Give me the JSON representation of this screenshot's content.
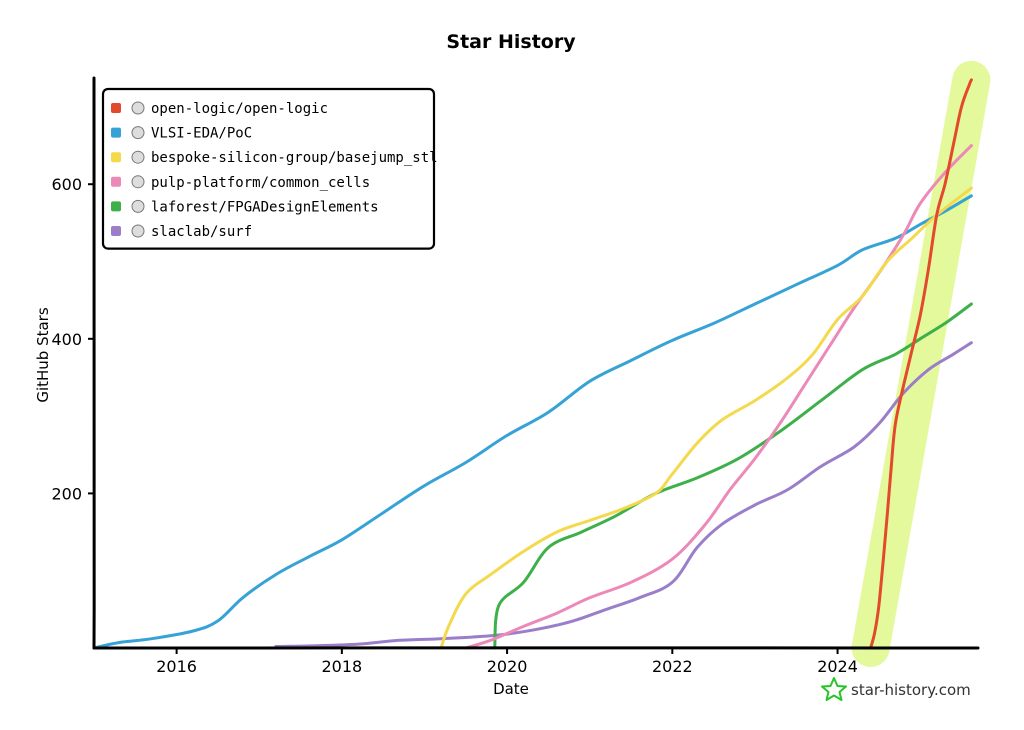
{
  "chart_data": {
    "type": "line",
    "title": "Star History",
    "xlabel": "Date",
    "ylabel": "GitHub Stars",
    "xlim": [
      2015.0,
      2025.7
    ],
    "ylim": [
      0,
      740
    ],
    "x_ticks": [
      {
        "value": 2016,
        "label": "2016"
      },
      {
        "value": 2018,
        "label": "2018"
      },
      {
        "value": 2020,
        "label": "2020"
      },
      {
        "value": 2022,
        "label": "2022"
      },
      {
        "value": 2024,
        "label": "2024"
      }
    ],
    "y_ticks": [
      {
        "value": 200,
        "label": "200"
      },
      {
        "value": 400,
        "label": "400"
      },
      {
        "value": 600,
        "label": "600"
      }
    ],
    "legend_position": "top-left",
    "grid": false,
    "series": [
      {
        "name": "open-logic/open-logic",
        "color": "#e2492d",
        "highlighted": true,
        "highlight_color": "#dcf77a",
        "points": [
          [
            2024.4,
            0
          ],
          [
            2024.45,
            20
          ],
          [
            2024.5,
            55
          ],
          [
            2024.55,
            110
          ],
          [
            2024.6,
            170
          ],
          [
            2024.65,
            235
          ],
          [
            2024.7,
            290
          ],
          [
            2024.8,
            340
          ],
          [
            2024.9,
            385
          ],
          [
            2025.0,
            430
          ],
          [
            2025.1,
            490
          ],
          [
            2025.2,
            560
          ],
          [
            2025.3,
            600
          ],
          [
            2025.4,
            650
          ],
          [
            2025.5,
            700
          ],
          [
            2025.6,
            730
          ],
          [
            2025.62,
            735
          ]
        ]
      },
      {
        "name": "VLSI-EDA/PoC",
        "color": "#36a2d6",
        "points": [
          [
            2015.0,
            0
          ],
          [
            2015.3,
            7
          ],
          [
            2015.7,
            12
          ],
          [
            2016.2,
            22
          ],
          [
            2016.5,
            35
          ],
          [
            2016.8,
            65
          ],
          [
            2017.2,
            95
          ],
          [
            2017.6,
            118
          ],
          [
            2018.0,
            140
          ],
          [
            2018.5,
            175
          ],
          [
            2019.0,
            210
          ],
          [
            2019.5,
            240
          ],
          [
            2020.0,
            275
          ],
          [
            2020.5,
            305
          ],
          [
            2021.0,
            345
          ],
          [
            2021.5,
            372
          ],
          [
            2022.0,
            398
          ],
          [
            2022.5,
            420
          ],
          [
            2023.0,
            445
          ],
          [
            2023.5,
            470
          ],
          [
            2024.0,
            495
          ],
          [
            2024.3,
            515
          ],
          [
            2024.7,
            530
          ],
          [
            2025.0,
            548
          ],
          [
            2025.3,
            565
          ],
          [
            2025.62,
            585
          ]
        ]
      },
      {
        "name": "bespoke-silicon-group/basejump_stl",
        "color": "#f4d94d",
        "points": [
          [
            2019.2,
            0
          ],
          [
            2019.3,
            30
          ],
          [
            2019.5,
            70
          ],
          [
            2019.8,
            95
          ],
          [
            2020.2,
            125
          ],
          [
            2020.6,
            150
          ],
          [
            2021.0,
            165
          ],
          [
            2021.4,
            180
          ],
          [
            2021.8,
            200
          ],
          [
            2022.0,
            225
          ],
          [
            2022.3,
            265
          ],
          [
            2022.6,
            295
          ],
          [
            2023.0,
            320
          ],
          [
            2023.4,
            350
          ],
          [
            2023.7,
            380
          ],
          [
            2024.0,
            425
          ],
          [
            2024.3,
            455
          ],
          [
            2024.6,
            500
          ],
          [
            2024.9,
            530
          ],
          [
            2025.2,
            560
          ],
          [
            2025.62,
            595
          ]
        ]
      },
      {
        "name": "pulp-platform/common_cells",
        "color": "#ec89b9",
        "points": [
          [
            2019.5,
            0
          ],
          [
            2019.8,
            10
          ],
          [
            2020.2,
            28
          ],
          [
            2020.6,
            45
          ],
          [
            2021.0,
            65
          ],
          [
            2021.5,
            85
          ],
          [
            2022.0,
            115
          ],
          [
            2022.4,
            160
          ],
          [
            2022.7,
            205
          ],
          [
            2023.0,
            245
          ],
          [
            2023.3,
            290
          ],
          [
            2023.6,
            340
          ],
          [
            2023.9,
            390
          ],
          [
            2024.2,
            440
          ],
          [
            2024.5,
            485
          ],
          [
            2024.8,
            535
          ],
          [
            2025.0,
            575
          ],
          [
            2025.3,
            615
          ],
          [
            2025.62,
            650
          ]
        ]
      },
      {
        "name": "laforest/FPGADesignElements",
        "color": "#3eb04a",
        "points": [
          [
            2019.85,
            0
          ],
          [
            2019.9,
            55
          ],
          [
            2020.2,
            85
          ],
          [
            2020.5,
            130
          ],
          [
            2020.9,
            150
          ],
          [
            2021.3,
            170
          ],
          [
            2021.8,
            200
          ],
          [
            2022.3,
            220
          ],
          [
            2022.8,
            245
          ],
          [
            2023.3,
            280
          ],
          [
            2023.8,
            320
          ],
          [
            2024.3,
            360
          ],
          [
            2024.7,
            380
          ],
          [
            2025.0,
            400
          ],
          [
            2025.3,
            420
          ],
          [
            2025.62,
            445
          ]
        ]
      },
      {
        "name": "slaclab/surf",
        "color": "#9b7ec9",
        "points": [
          [
            2017.2,
            2
          ],
          [
            2017.7,
            3
          ],
          [
            2018.2,
            5
          ],
          [
            2018.7,
            10
          ],
          [
            2019.2,
            12
          ],
          [
            2019.7,
            15
          ],
          [
            2020.0,
            18
          ],
          [
            2020.4,
            25
          ],
          [
            2020.8,
            35
          ],
          [
            2021.2,
            50
          ],
          [
            2021.6,
            65
          ],
          [
            2022.0,
            85
          ],
          [
            2022.3,
            130
          ],
          [
            2022.6,
            160
          ],
          [
            2023.0,
            185
          ],
          [
            2023.4,
            205
          ],
          [
            2023.8,
            235
          ],
          [
            2024.2,
            260
          ],
          [
            2024.5,
            290
          ],
          [
            2024.8,
            330
          ],
          [
            2025.1,
            360
          ],
          [
            2025.4,
            380
          ],
          [
            2025.62,
            395
          ]
        ]
      }
    ]
  },
  "credit": {
    "text": "star-history.com",
    "icon": "star-icon",
    "color": "#27c527"
  }
}
